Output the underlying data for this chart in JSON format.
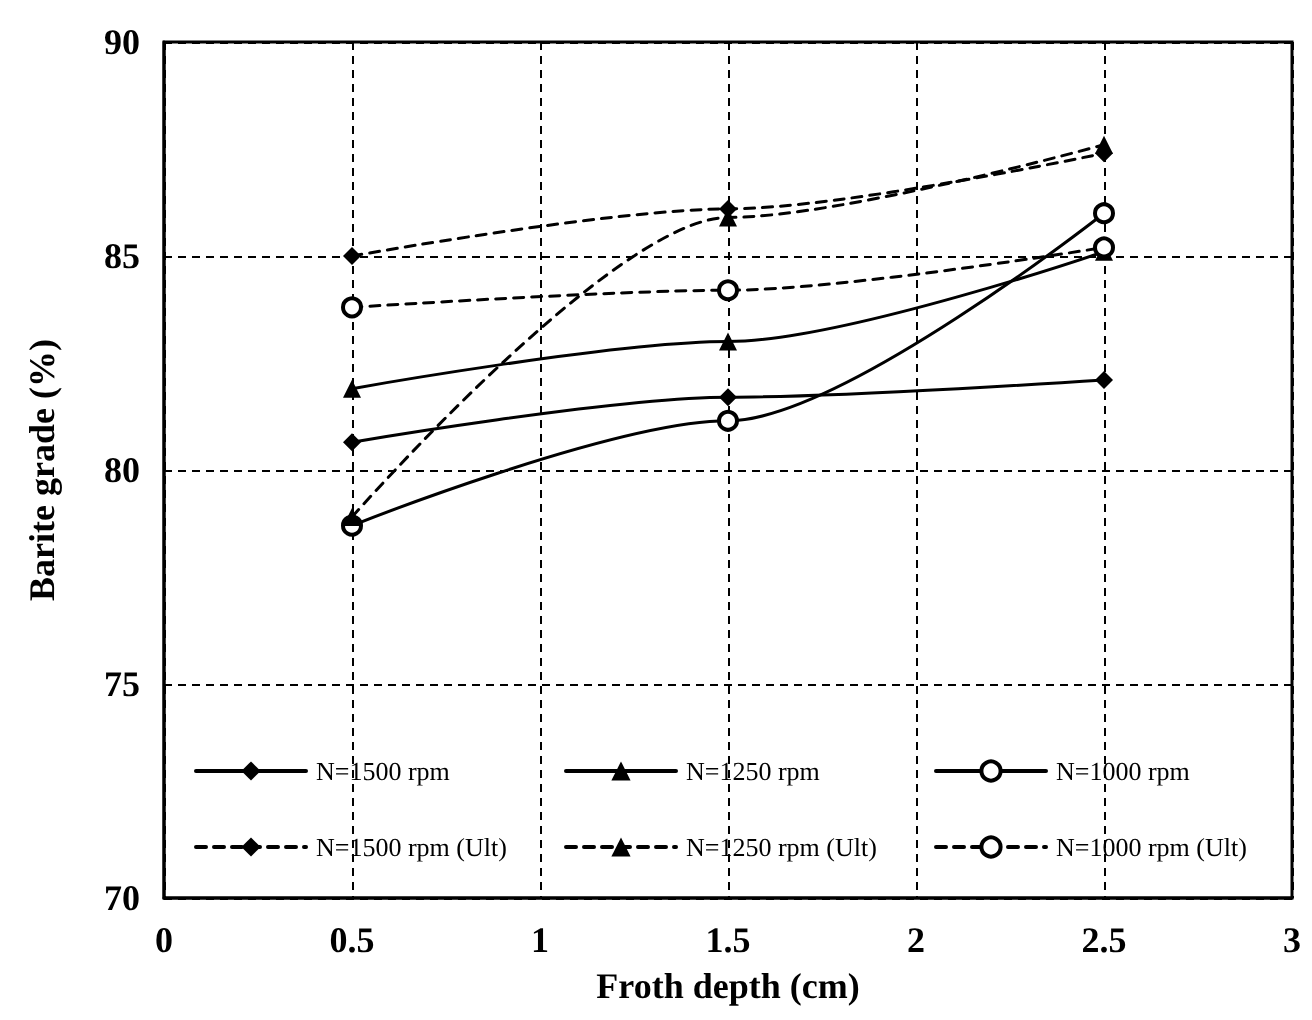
{
  "chart_data": {
    "type": "line",
    "xlabel": "Froth depth (cm)",
    "ylabel": "Barite grade (%)",
    "x": [
      0.5,
      1.5,
      2.5
    ],
    "xlim": [
      0,
      3
    ],
    "xticks": [
      0,
      0.5,
      1,
      1.5,
      2,
      2.5,
      3
    ],
    "ylim": [
      70,
      90
    ],
    "yticks": [
      70,
      75,
      80,
      85,
      90
    ],
    "grid": true,
    "legend": "bottom",
    "series": [
      {
        "name": "N=1500 rpm",
        "color": "#000000",
        "marker": "diamond",
        "line_style": "solid",
        "values": [
          80.65,
          81.7,
          82.1
        ]
      },
      {
        "name": "N=1250 rpm",
        "color": "#000000",
        "marker": "triangle",
        "line_style": "solid",
        "values": [
          81.9,
          83.0,
          85.1
        ]
      },
      {
        "name": "N=1000 rpm",
        "color": "#000000",
        "marker": "circle",
        "line_style": "solid",
        "values": [
          78.7,
          81.15,
          86.0
        ]
      },
      {
        "name": "N=1500 rpm (Ult)",
        "color": "#000000",
        "marker": "diamond",
        "line_style": "dashed",
        "values": [
          85.0,
          86.1,
          87.4
        ]
      },
      {
        "name": "N=1250 rpm (Ult)",
        "color": "#000000",
        "marker": "triangle",
        "line_style": "dashed",
        "values": [
          78.9,
          85.9,
          87.6
        ]
      },
      {
        "name": "N=1000 rpm (Ult)",
        "color": "#000000",
        "marker": "circle",
        "line_style": "dashed",
        "values": [
          83.8,
          84.2,
          85.2
        ]
      }
    ]
  }
}
